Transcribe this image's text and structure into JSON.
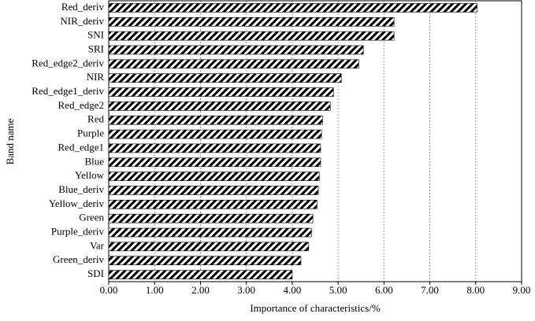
{
  "chart_data": {
    "type": "barh",
    "x_label": "Importance of characteristics/%",
    "y_label": "Band name",
    "categories": [
      "Red_deriv",
      "NIR_deriv",
      "SNI",
      "SRI",
      "Red_edge2_deriv",
      "NIR",
      "Red_edge1_deriv",
      "Red_edge2",
      "Red",
      "Purple",
      "Red_edge1",
      "Blue",
      "Yellow",
      "Blue_deriv",
      "Yellow_deriv",
      "Green",
      "Purple_deriv",
      "Var",
      "Green_deriv",
      "SDI"
    ],
    "values": [
      8.03,
      6.22,
      6.22,
      5.55,
      5.45,
      5.07,
      4.9,
      4.83,
      4.66,
      4.64,
      4.62,
      4.62,
      4.59,
      4.57,
      4.54,
      4.45,
      4.42,
      4.36,
      4.19,
      4.0
    ],
    "color": "#000000",
    "xlim": [
      0,
      9
    ],
    "xticks": [
      {
        "value": 0,
        "label": "0.00"
      },
      {
        "value": 1,
        "label": "1.00"
      },
      {
        "value": 2,
        "label": "2.00"
      },
      {
        "value": 3,
        "label": "3.00"
      },
      {
        "value": 4,
        "label": "4.00"
      },
      {
        "value": 5,
        "label": "5.00"
      },
      {
        "value": 6,
        "label": "6.00"
      },
      {
        "value": 7,
        "label": "7.00"
      },
      {
        "value": 8,
        "label": "8.00"
      },
      {
        "value": 9,
        "label": "9.00"
      }
    ],
    "grid": true
  }
}
